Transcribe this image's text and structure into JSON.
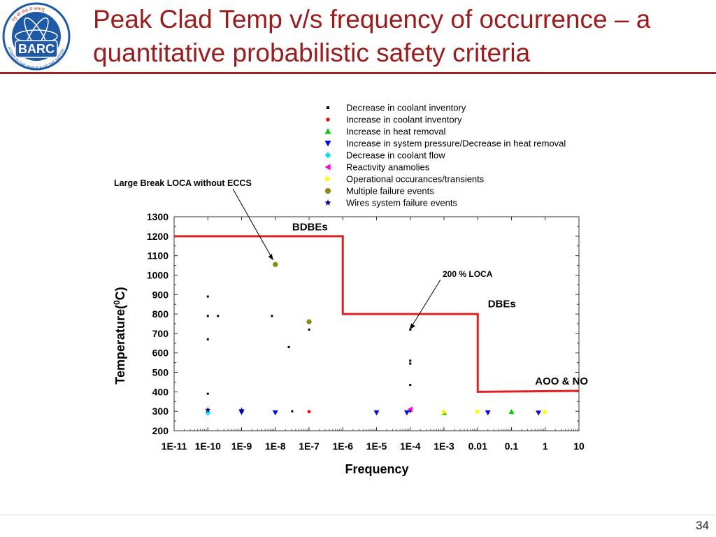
{
  "slide": {
    "title": "Peak Clad Temp v/s frequency of occurrence – a quantitative probabilistic safety criteria",
    "page_number": "34",
    "logo": {
      "text": "BARC",
      "motto": "ATOMS IN THE SERVICE OF THE NATION",
      "hindi": "राष्ट्र की सेवा में परमाणु"
    }
  },
  "chart_data": {
    "type": "scatter",
    "xlabel": "Frequency",
    "ylabel": "Temperature(°C)",
    "ylabel_main": "Temperature(",
    "ylabel_sup": "0",
    "ylabel_end": "C)",
    "x_scale": "log",
    "xlim_exp": [
      -11,
      1
    ],
    "x_ticks": [
      "1E-11",
      "1E-10",
      "1E-9",
      "1E-8",
      "1E-7",
      "1E-6",
      "1E-5",
      "1E-4",
      "1E-3",
      "0.01",
      "0.1",
      "1",
      "10"
    ],
    "ylim": [
      200,
      1300
    ],
    "y_ticks": [
      200,
      300,
      400,
      500,
      600,
      700,
      800,
      900,
      1000,
      1100,
      1200,
      1300
    ],
    "grid": false,
    "legend_position": "top-right",
    "series": [
      {
        "name": "Decrease in coolant inventory",
        "marker": "square",
        "color": "#000000",
        "points": [
          [
            -10,
            890
          ],
          [
            -10,
            790
          ],
          [
            -9.7,
            790
          ],
          [
            -10,
            670
          ],
          [
            -10,
            390
          ],
          [
            -8.1,
            790
          ],
          [
            -7.6,
            630
          ],
          [
            -7,
            720
          ],
          [
            -4,
            720
          ],
          [
            -4,
            560
          ],
          [
            -4,
            545
          ],
          [
            -4,
            435
          ],
          [
            -7.5,
            300
          ],
          [
            -4,
            300
          ]
        ]
      },
      {
        "name": "Increase in coolant inventory",
        "marker": "circle",
        "color": "#ff0000",
        "points": [
          [
            -7,
            298
          ]
        ]
      },
      {
        "name": "Increase in heat removal",
        "marker": "triangle-up",
        "color": "#00cc00",
        "points": [
          [
            -1,
            297
          ],
          [
            -3,
            293
          ]
        ]
      },
      {
        "name": "Increase in system pressure/Decrease in heat removal",
        "marker": "triangle-down",
        "color": "#0000ff",
        "points": [
          [
            -9,
            295
          ],
          [
            -8,
            293
          ],
          [
            -5,
            293
          ],
          [
            -4.1,
            293
          ],
          [
            -1.7,
            293
          ],
          [
            -0.2,
            292
          ]
        ]
      },
      {
        "name": "Decrease in coolant flow",
        "marker": "diamond",
        "color": "#00e5ee",
        "points": [
          [
            -10,
            292
          ]
        ]
      },
      {
        "name": "Reactivity anamolies",
        "marker": "triangle-left",
        "color": "#ff00cc",
        "points": [
          [
            -4,
            310
          ]
        ]
      },
      {
        "name": "Operational occurances/transients",
        "marker": "triangle-right",
        "color": "#ffff00",
        "points": [
          [
            -3,
            296
          ],
          [
            -2,
            298
          ],
          [
            0,
            296
          ]
        ]
      },
      {
        "name": "Multiple failure events",
        "marker": "hexagon",
        "color": "#8b8b14",
        "points": [
          [
            -8,
            1055
          ],
          [
            -7,
            760
          ]
        ]
      },
      {
        "name": "Wires system failure events",
        "marker": "star",
        "color": "#00008b",
        "points": [
          [
            -10,
            307
          ],
          [
            -9,
            305
          ]
        ]
      }
    ],
    "limit_line": {
      "color": "#e02020",
      "points": [
        [
          -11,
          1200
        ],
        [
          -6,
          1200
        ],
        [
          -6,
          800
        ],
        [
          -2,
          800
        ],
        [
          -2,
          400
        ],
        [
          1,
          405
        ]
      ]
    },
    "region_labels": [
      {
        "text": "BDBEs",
        "x": -7.5,
        "y": 1230
      },
      {
        "text": "DBEs",
        "x": -1.7,
        "y": 835
      },
      {
        "text": "AOO & NO",
        "x": -0.3,
        "y": 438
      }
    ],
    "annotations": [
      {
        "text": "Large Break LOCA without ECCS",
        "arrow_to": [
          -8,
          1055
        ]
      },
      {
        "text": "200 % LOCA",
        "arrow_to": [
          -4.1,
          720
        ]
      }
    ]
  }
}
